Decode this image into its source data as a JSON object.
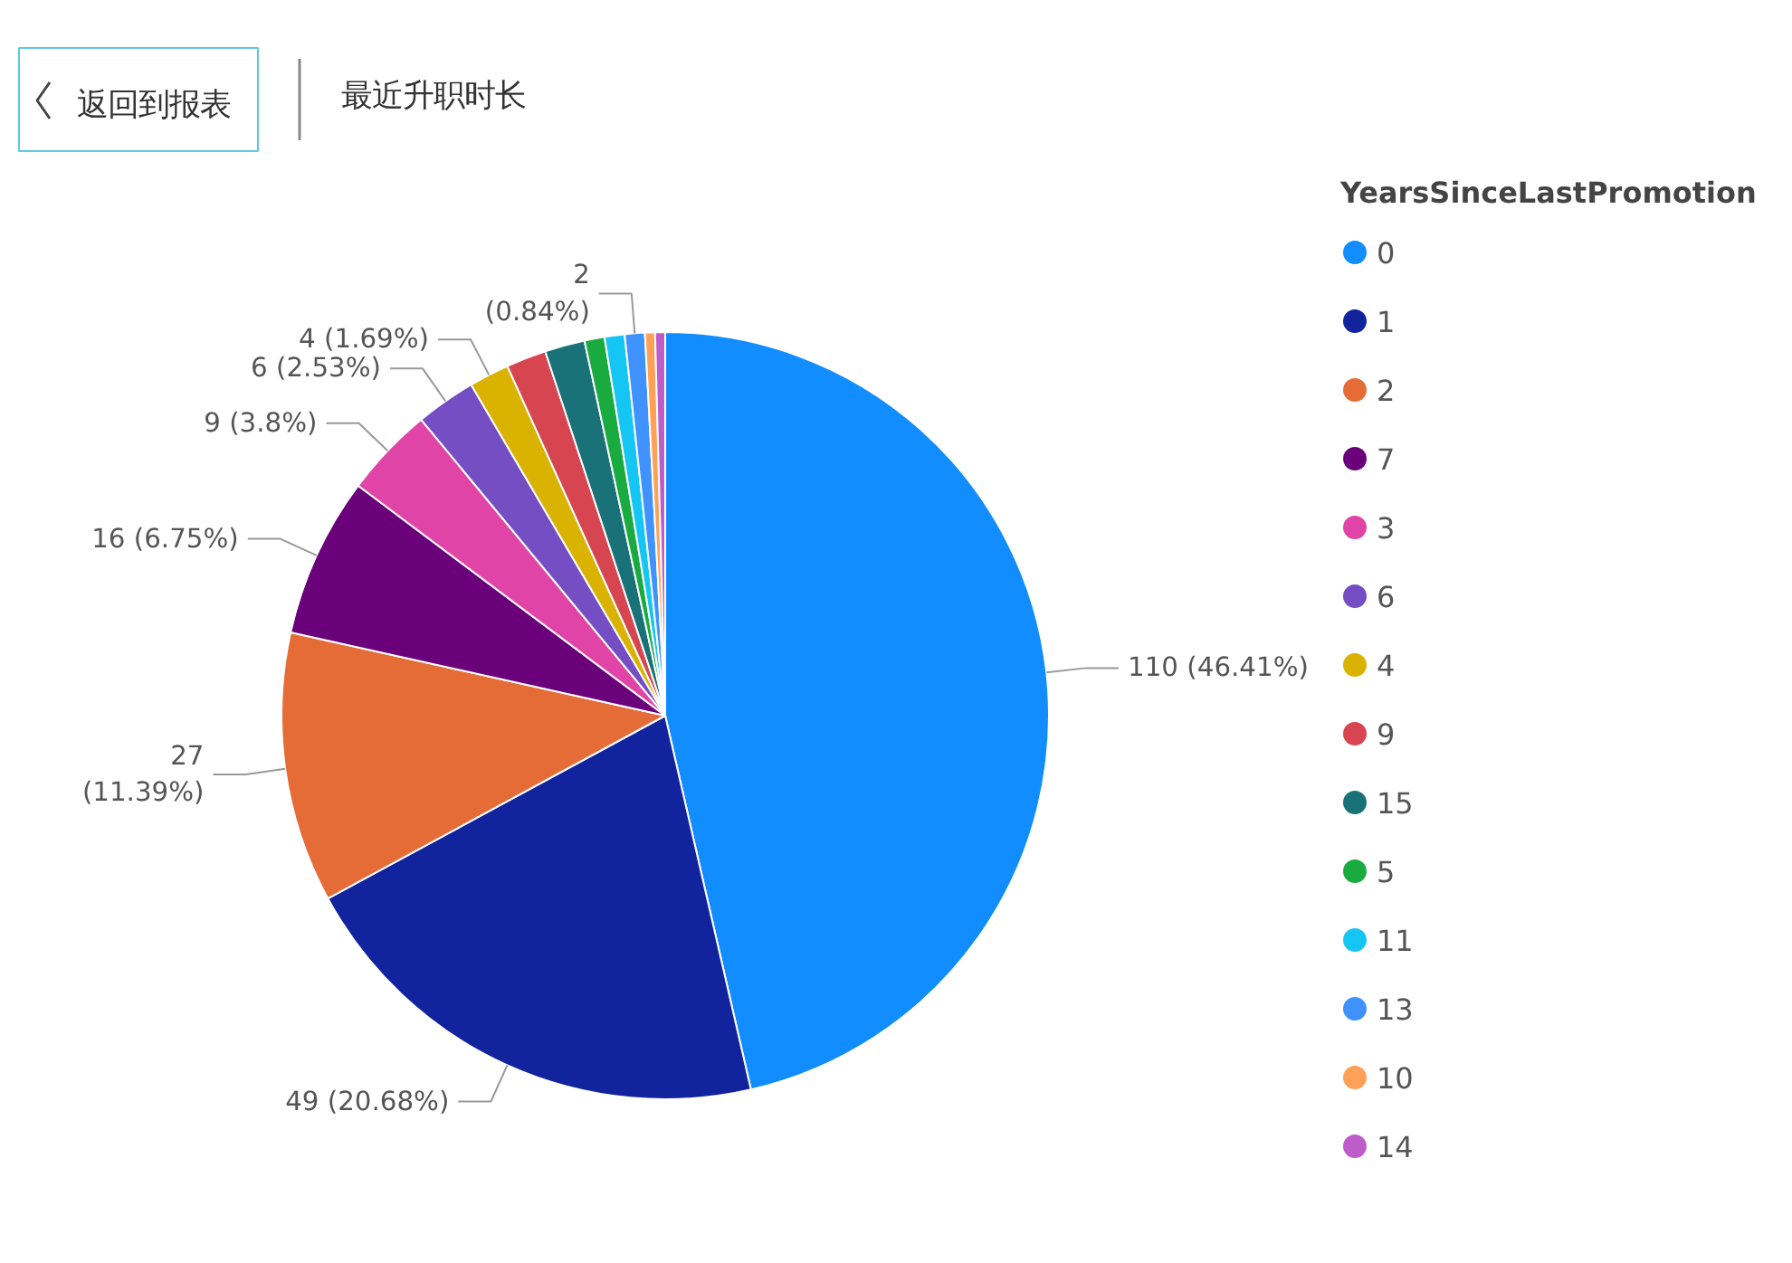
{
  "chart_data": {
    "type": "pie",
    "title": "最近升职时长",
    "legend_title": "YearsSinceLastPromotion",
    "legend": "right",
    "categories": [
      "0",
      "1",
      "2",
      "7",
      "3",
      "6",
      "4",
      "9",
      "15",
      "5",
      "11",
      "13",
      "10",
      "14"
    ],
    "values": [
      110,
      49,
      27,
      16,
      9,
      6,
      4,
      4,
      4,
      2,
      2,
      2,
      1,
      1
    ],
    "colors": [
      "#118dff",
      "#12239e",
      "#e66c37",
      "#6b007b",
      "#e044a7",
      "#744ec2",
      "#d9b300",
      "#d64550",
      "#197278",
      "#1aab40",
      "#15c6f4",
      "#4092ff",
      "#ffa058",
      "#be5dc9"
    ],
    "value_labels": [
      "110 (46.41%)",
      "49 (20.68%)",
      "27\n(11.39%)",
      "16 (6.75%)",
      "9 (3.8%)",
      "6 (2.53%)",
      "4 (1.69%)",
      null,
      null,
      null,
      null,
      "2\n(0.84%)",
      null,
      null
    ],
    "annotations": [
      "返回到报表"
    ]
  }
}
